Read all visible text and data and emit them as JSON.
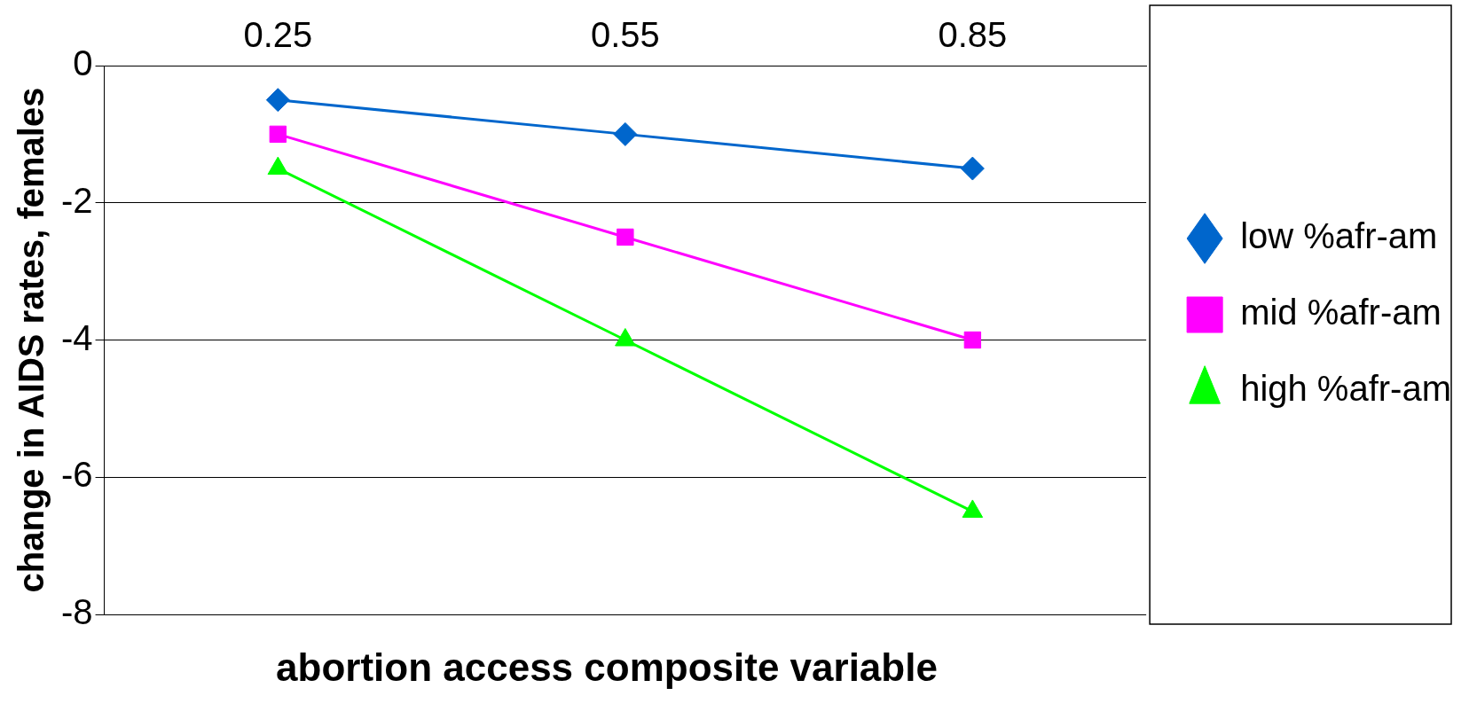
{
  "chart_data": {
    "type": "line",
    "xlabel": "abortion access composite variable",
    "ylabel": "change in AIDS rates, females",
    "categories": [
      "0.25",
      "0.55",
      "0.85"
    ],
    "series": [
      {
        "name": "low %afr-am",
        "color": "#0066cc",
        "marker": "diamond",
        "values": [
          -0.5,
          -1,
          -1.5
        ]
      },
      {
        "name": "mid %afr-am",
        "color": "#ff00ff",
        "marker": "square",
        "values": [
          -1,
          -2.5,
          -4
        ]
      },
      {
        "name": "high %afr-am",
        "color": "#00ff00",
        "marker": "triangle",
        "values": [
          -1.5,
          -4,
          -6.5
        ]
      }
    ],
    "ylim": [
      -8,
      0
    ],
    "yticks": [
      -8,
      -6,
      -4,
      -2,
      0
    ],
    "grid": "y",
    "legend": "right",
    "line_style": "solid"
  }
}
